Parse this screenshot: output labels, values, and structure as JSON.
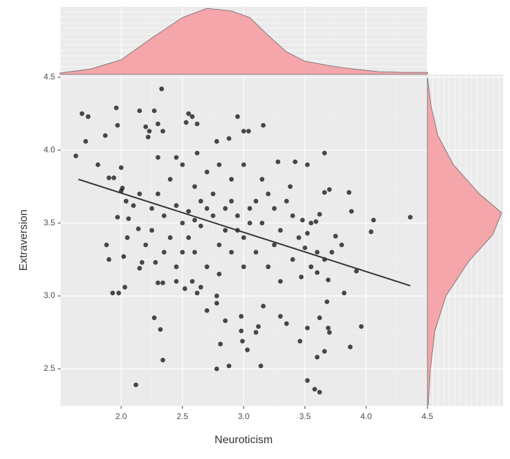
{
  "chart_data": {
    "type": "scatter",
    "x_label": "Neuroticism",
    "y_label": "Extraversion",
    "xlim": [
      1.505,
      4.5
    ],
    "ylim": [
      2.245,
      4.52
    ],
    "xticks": [
      {
        "value": 2,
        "label": "2.0"
      },
      2.5,
      {
        "value": 3,
        "label": "3.0"
      },
      3.5,
      {
        "value": 4,
        "label": "4.0"
      },
      4.5
    ],
    "yticks": [
      2.5,
      {
        "value": 3,
        "label": "3.0"
      },
      3.5,
      {
        "value": 4,
        "label": "4.0"
      },
      4.5
    ],
    "grid": true,
    "color": "#000000",
    "density_color": "#f4a6aa",
    "x": [
      1.68,
      1.73,
      1.71,
      1.63,
      1.96,
      1.97,
      1.87,
      2.15,
      2.33,
      2.27,
      2.2,
      2.22,
      2.23,
      2.3,
      2.34,
      2.55,
      2.58,
      2.62,
      2.53,
      2.95,
      3.0,
      3.04,
      3.16,
      1.81,
      1.9,
      1.94,
      2.0,
      2.01,
      2.0,
      2.1,
      2.04,
      1.97,
      2.06,
      2.05,
      1.88,
      1.9,
      2.02,
      1.93,
      1.98,
      2.03,
      2.15,
      2.17,
      2.14,
      2.28,
      2.3,
      2.34,
      2.27,
      2.32,
      2.34,
      2.12,
      2.45,
      2.52,
      2.58,
      2.62,
      2.65,
      2.7,
      2.78,
      2.78,
      2.81,
      2.78,
      2.88,
      2.85,
      2.98,
      2.99,
      3.03,
      2.98,
      3.1,
      3.12,
      3.14,
      3.16,
      3.3,
      3.35,
      3.46,
      3.52,
      3.52,
      3.58,
      3.62,
      3.6,
      3.66,
      3.62,
      3.7,
      3.69,
      3.87,
      3.96,
      3.82,
      3.68,
      3.69,
      3.6,
      3.55,
      3.47,
      3.5,
      3.52,
      3.55,
      3.6,
      3.66,
      3.72,
      3.8,
      3.75,
      3.88,
      3.86,
      3.7,
      3.66,
      3.62,
      3.59,
      3.48,
      3.52,
      3.66,
      3.42,
      4.06,
      4.04,
      4.36,
      3.92,
      3.4,
      3.3,
      3.25,
      3.2,
      3.15,
      3.1,
      3.05,
      3.0,
      2.95,
      2.9,
      2.85,
      2.8,
      2.75,
      2.7,
      2.65,
      2.6,
      2.55,
      2.5,
      2.45,
      2.4,
      2.35,
      2.3,
      2.25,
      2.2,
      2.4,
      2.5,
      2.6,
      2.7,
      2.8,
      2.9,
      3.0,
      3.1,
      3.2,
      3.3,
      3.4,
      2.6,
      2.7,
      2.8,
      2.9,
      3.0,
      2.5,
      2.45,
      2.55,
      2.65,
      2.75,
      2.85,
      2.95,
      3.05,
      3.15,
      3.25,
      3.35,
      3.45,
      2.35,
      2.25,
      2.15,
      2.3,
      2.45,
      2.62,
      2.88,
      2.78,
      3.28,
      3.38
    ],
    "values": [
      4.25,
      4.23,
      4.06,
      3.96,
      4.29,
      4.17,
      4.1,
      4.27,
      4.42,
      4.27,
      4.16,
      4.09,
      4.13,
      4.18,
      4.13,
      4.25,
      4.23,
      4.18,
      4.19,
      4.23,
      4.13,
      4.13,
      4.17,
      3.9,
      3.81,
      3.81,
      3.88,
      3.74,
      3.72,
      3.62,
      3.65,
      3.54,
      3.53,
      3.4,
      3.35,
      3.25,
      3.27,
      3.02,
      3.02,
      3.06,
      3.19,
      3.23,
      3.46,
      3.23,
      3.09,
      3.09,
      2.85,
      2.77,
      2.56,
      2.39,
      3.1,
      3.05,
      3.1,
      3.02,
      3.06,
      2.9,
      3.0,
      2.95,
      2.67,
      2.5,
      2.52,
      2.83,
      2.86,
      2.69,
      2.63,
      2.76,
      2.75,
      2.79,
      2.52,
      2.93,
      2.86,
      2.81,
      2.69,
      2.78,
      2.42,
      2.36,
      2.34,
      2.58,
      2.62,
      2.85,
      2.75,
      2.78,
      2.65,
      2.79,
      3.02,
      2.96,
      3.11,
      3.16,
      3.2,
      3.13,
      3.33,
      3.43,
      3.5,
      3.3,
      3.25,
      3.3,
      3.35,
      3.41,
      3.58,
      3.71,
      3.73,
      3.71,
      3.56,
      3.51,
      3.52,
      3.9,
      3.98,
      3.92,
      3.52,
      3.44,
      3.54,
      3.17,
      3.55,
      3.45,
      3.6,
      3.7,
      3.8,
      3.65,
      3.5,
      3.4,
      3.55,
      3.65,
      3.45,
      3.35,
      3.55,
      3.6,
      3.48,
      3.52,
      3.58,
      3.5,
      3.62,
      3.4,
      3.55,
      3.7,
      3.45,
      3.35,
      3.8,
      3.9,
      3.75,
      3.85,
      3.9,
      3.8,
      3.9,
      3.3,
      3.2,
      3.1,
      3.25,
      3.3,
      3.2,
      3.15,
      3.3,
      3.2,
      3.3,
      3.2,
      3.4,
      3.65,
      3.7,
      3.6,
      3.45,
      3.6,
      3.5,
      3.35,
      3.65,
      3.4,
      3.3,
      3.6,
      3.7,
      3.95,
      3.95,
      3.98,
      4.08,
      4.06,
      3.92,
      3.75
    ],
    "trend_line": {
      "x": [
        1.65,
        4.36
      ],
      "values": [
        3.8,
        3.07
      ],
      "color": "#333333"
    },
    "x_density": {
      "x": [
        1.5,
        1.75,
        2.0,
        2.25,
        2.5,
        2.7,
        2.9,
        3.05,
        3.2,
        3.35,
        3.5,
        3.7,
        3.9,
        4.1,
        4.3,
        4.5
      ],
      "values": [
        0.02,
        0.08,
        0.22,
        0.55,
        0.86,
        1.0,
        0.96,
        0.86,
        0.59,
        0.34,
        0.2,
        0.13,
        0.08,
        0.04,
        0.03,
        0.03
      ]
    },
    "y_density": {
      "y": [
        4.5,
        4.3,
        4.1,
        3.9,
        3.7,
        3.57,
        3.42,
        3.24,
        3.0,
        2.76,
        2.5,
        2.25
      ],
      "values": [
        0.0,
        0.05,
        0.14,
        0.35,
        0.7,
        1.0,
        0.88,
        0.56,
        0.25,
        0.1,
        0.04,
        0.01
      ]
    }
  }
}
